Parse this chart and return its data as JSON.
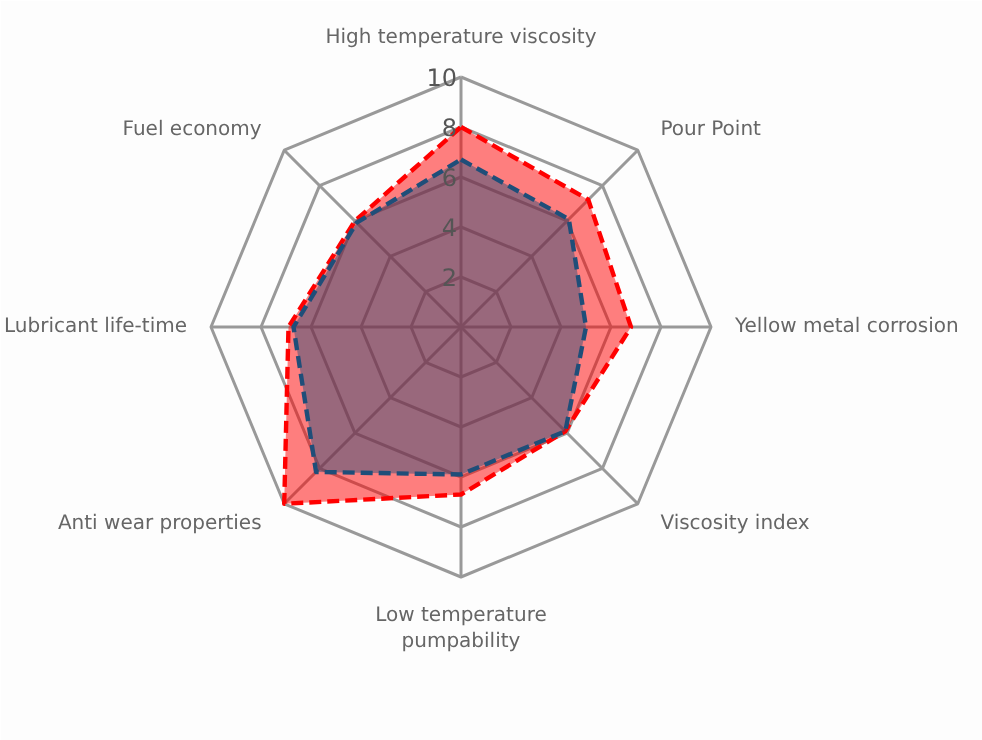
{
  "chart_data": {
    "type": "radar",
    "categories": [
      "High temperature viscosity",
      "Pour Point",
      "Yellow metal corrosion",
      "Viscosity index",
      "Low temperature pumpability",
      "Anti wear properties",
      "Lubricant life-time",
      "Fuel economy"
    ],
    "series": [
      {
        "color": "#ff0000",
        "values": [
          8,
          7.2,
          6.8,
          5.9,
          6.7,
          10,
          6.9,
          6.0
        ]
      },
      {
        "color": "#1f4e79",
        "values": [
          6.7,
          6.1,
          5.0,
          5.9,
          5.9,
          8.2,
          6.7,
          5.9
        ]
      }
    ],
    "ylim": [
      0,
      10
    ],
    "yticks": [
      2,
      4,
      6,
      8,
      10
    ],
    "grid": true,
    "line_style": "dashed"
  }
}
